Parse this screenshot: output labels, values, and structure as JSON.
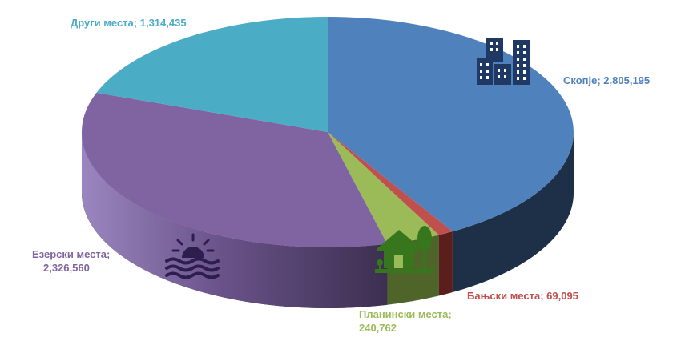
{
  "chart_data": {
    "type": "pie",
    "title": "",
    "unit": "",
    "slices": [
      {
        "label": "Скопје",
        "value": 2805195,
        "display": "Скопје; 2,805,195",
        "color": "#4F81BD",
        "side": "#1E3047",
        "icon": "city-buildings-icon"
      },
      {
        "label": "Бањски места",
        "value": 69095,
        "display": "Бањски места; 69,095",
        "color": "#C0504D",
        "side": "#5A1F1D",
        "icon": ""
      },
      {
        "label": "Планински места",
        "value": 240762,
        "display_name": "Планински места;",
        "display_value": "240,762",
        "color": "#9BBB59",
        "side": "#4F6428",
        "icon": "house-tree-icon"
      },
      {
        "label": "Езерски места",
        "value": 2326560,
        "display_name": "Езерски места;",
        "display_value": "2,326,560",
        "color": "#8064A2",
        "side": "#3C2F50",
        "icon": "sunset-waves-icon"
      },
      {
        "label": "Други места",
        "value": 1314435,
        "display": "Други места; 1,314,435",
        "color": "#4BACC6",
        "side": "#21535F",
        "icon": ""
      }
    ],
    "legend": "none",
    "style": "3d-pie"
  }
}
